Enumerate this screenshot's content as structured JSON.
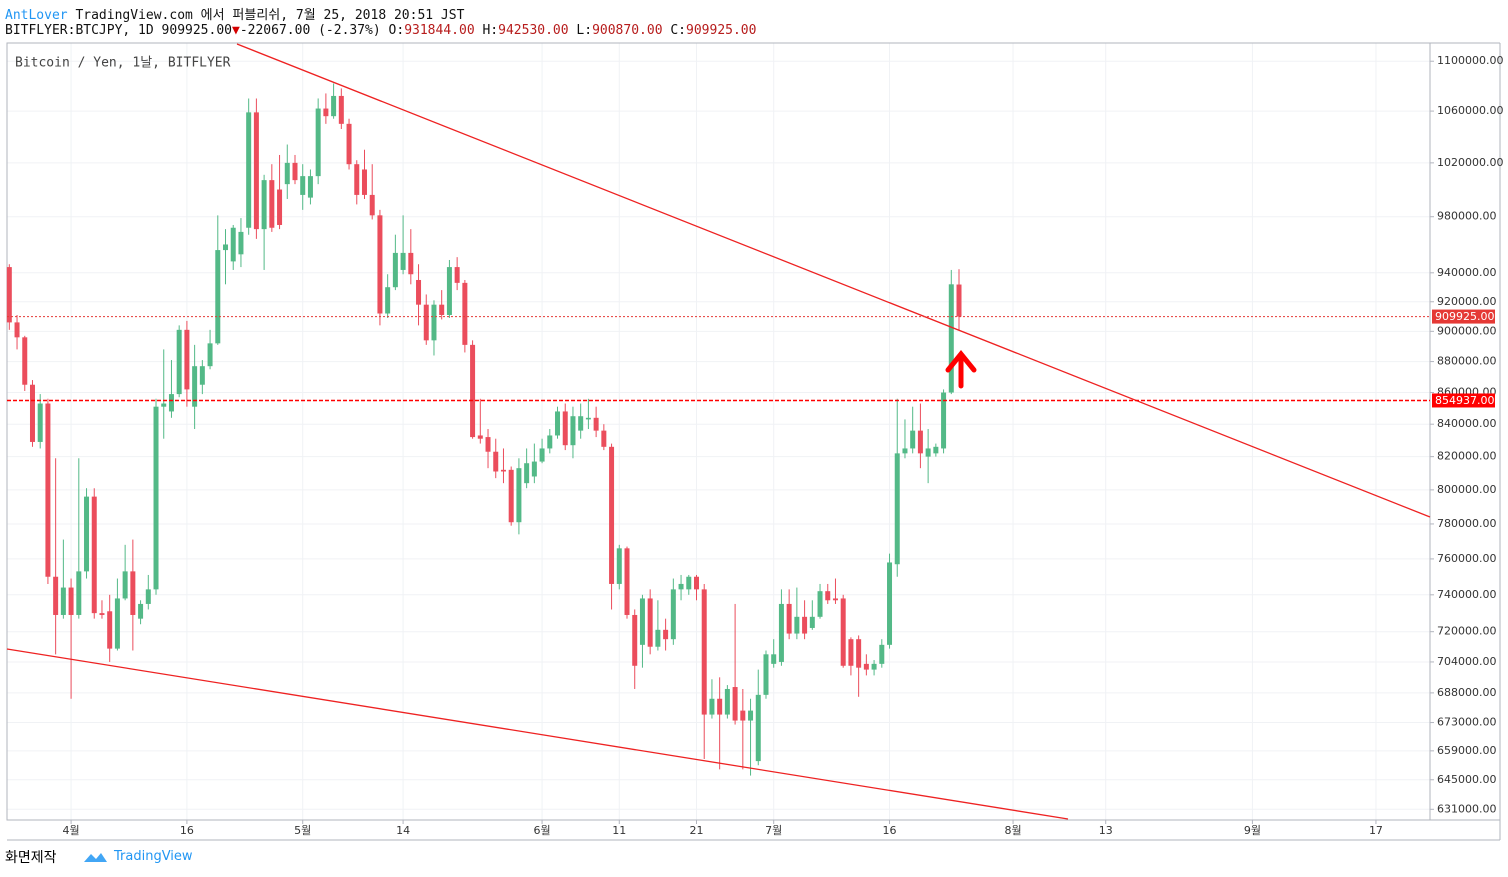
{
  "header": {
    "author": "AntLover",
    "published": "TradingView.com 에서 퍼블리쉬, 7월 25, 2018 20:51 JST",
    "symbol": "BITFLYER:BTCJPY, 1D",
    "last": "909925.00",
    "arrow": "▼",
    "change": "-22067.00 (-2.37%)",
    "ohlc": [
      {
        "label": "O:",
        "value": "931844.00"
      },
      {
        "label": "H:",
        "value": "942530.00"
      },
      {
        "label": "L:",
        "value": "900870.00"
      },
      {
        "label": "C:",
        "value": "909925.00"
      }
    ]
  },
  "chart_data": {
    "type": "candlestick",
    "title": "Bitcoin / Yen, 1날, BITFLYER",
    "up_color": "#53b987",
    "down_color": "#eb4d5c",
    "log_scale": true,
    "grid": true,
    "open": [
      944000,
      906000,
      896000,
      865000,
      829000,
      853000,
      750000,
      729000,
      744000,
      729000,
      753000,
      796000,
      730000,
      731000,
      711000,
      738000,
      753000,
      727000,
      735000,
      743000,
      851000,
      848000,
      859000,
      901000,
      851000,
      865000,
      877000,
      892000,
      956000,
      948000,
      953000,
      972000,
      1059000,
      971000,
      1007000,
      1000000,
      1004000,
      1020000,
      996000,
      994000,
      1010000,
      1062000,
      1056000,
      1072000,
      1050000,
      1019000,
      1015000,
      996000,
      981000,
      912000,
      930000,
      942000,
      954000,
      935000,
      918000,
      894000,
      918000,
      911000,
      944000,
      933000,
      891000,
      833000,
      832000,
      823000,
      812000,
      812000,
      781000,
      804000,
      808000,
      817000,
      825000,
      833000,
      848000,
      827000,
      836000,
      843000,
      844000,
      836000,
      826000,
      746000,
      766000,
      729000,
      713000,
      738000,
      712000,
      721000,
      716000,
      743000,
      743000,
      750000,
      743000,
      677000,
      685000,
      677000,
      691000,
      679000,
      674000,
      654000,
      687000,
      703000,
      704000,
      735000,
      719000,
      728000,
      722000,
      728000,
      742000,
      738000,
      738000,
      716000,
      716000,
      703000,
      700000,
      703000,
      713000,
      757000,
      822000,
      825000,
      836000,
      820000,
      822000,
      825000,
      860000,
      931844
    ],
    "high": [
      946000,
      911000,
      897000,
      868000,
      859000,
      856000,
      819000,
      771000,
      749000,
      819000,
      801000,
      801000,
      737000,
      740000,
      749000,
      768000,
      771000,
      737000,
      751000,
      856000,
      888000,
      881000,
      904000,
      907000,
      891000,
      881000,
      901000,
      981000,
      971000,
      974000,
      979000,
      1070000,
      1070000,
      1011000,
      1019000,
      1026000,
      1034000,
      1026000,
      1019000,
      1015000,
      1070000,
      1074000,
      1082000,
      1078000,
      1054000,
      1022000,
      1030000,
      1019000,
      985000,
      939000,
      967000,
      981000,
      971000,
      946000,
      925000,
      921000,
      928000,
      949000,
      951000,
      935000,
      894000,
      856000,
      837000,
      831000,
      825000,
      814000,
      819000,
      825000,
      828000,
      831000,
      837000,
      851000,
      853000,
      851000,
      853000,
      856000,
      851000,
      840000,
      828000,
      768000,
      767000,
      732000,
      740000,
      743000,
      737000,
      727000,
      749000,
      751000,
      751000,
      751000,
      746000,
      695000,
      696000,
      692000,
      735000,
      690000,
      685000,
      700000,
      710000,
      716000,
      743000,
      743000,
      744000,
      737000,
      737000,
      746000,
      746000,
      749000,
      740000,
      717000,
      718000,
      708000,
      705000,
      716000,
      763000,
      856000,
      843000,
      851000,
      853000,
      837000,
      828000,
      862000,
      942000,
      942530
    ],
    "low": [
      901000,
      888000,
      861000,
      826000,
      825000,
      746000,
      708000,
      727000,
      685000,
      727000,
      749000,
      727000,
      727000,
      704000,
      710000,
      737000,
      710000,
      724000,
      732000,
      740000,
      831000,
      844000,
      857000,
      851000,
      837000,
      859000,
      875000,
      891000,
      932000,
      942000,
      944000,
      967000,
      964000,
      942000,
      969000,
      971000,
      993000,
      1004000,
      985000,
      989000,
      1004000,
      1050000,
      1054000,
      1046000,
      1015000,
      989000,
      993000,
      978000,
      904000,
      909000,
      928000,
      939000,
      932000,
      904000,
      891000,
      884000,
      908000,
      909000,
      928000,
      886000,
      831000,
      828000,
      813000,
      807000,
      804000,
      779000,
      774000,
      801000,
      804000,
      816000,
      822000,
      831000,
      824000,
      819000,
      831000,
      837000,
      832000,
      824000,
      732000,
      743000,
      727000,
      690000,
      701000,
      708000,
      710000,
      710000,
      713000,
      737000,
      740000,
      737000,
      655000,
      675000,
      650000,
      675000,
      672000,
      650000,
      647000,
      652000,
      685000,
      701000,
      702000,
      716000,
      716000,
      716000,
      721000,
      727000,
      735000,
      735000,
      701000,
      697000,
      686000,
      697000,
      697000,
      701000,
      711000,
      750000,
      819000,
      822000,
      813000,
      804000,
      820000,
      822000,
      859000,
      900870
    ],
    "close": [
      906000,
      896000,
      865000,
      829000,
      853000,
      750000,
      729000,
      744000,
      729000,
      753000,
      796000,
      730000,
      729000,
      711000,
      738000,
      753000,
      729000,
      735000,
      743000,
      851000,
      853000,
      859000,
      901000,
      862000,
      877000,
      877000,
      892000,
      956000,
      960000,
      972000,
      969000,
      1059000,
      971000,
      1007000,
      972000,
      974000,
      1020000,
      1007000,
      1010000,
      1010000,
      1062000,
      1056000,
      1072000,
      1050000,
      1019000,
      996000,
      996000,
      981000,
      912000,
      930000,
      954000,
      954000,
      939000,
      918000,
      894000,
      918000,
      911000,
      944000,
      933000,
      891000,
      832000,
      831000,
      823000,
      811000,
      811000,
      781000,
      813000,
      816000,
      817000,
      825000,
      833000,
      848000,
      827000,
      845000,
      845000,
      844000,
      836000,
      826000,
      746000,
      766000,
      729000,
      702000,
      738000,
      712000,
      721000,
      716000,
      743000,
      746000,
      750000,
      743000,
      677000,
      685000,
      677000,
      690000,
      674000,
      674000,
      679000,
      687000,
      708000,
      708000,
      735000,
      719000,
      728000,
      719000,
      728000,
      742000,
      737000,
      737000,
      702000,
      702000,
      701000,
      700000,
      703000,
      713000,
      758000,
      822000,
      825000,
      836000,
      822000,
      825000,
      826000,
      860000,
      932000,
      909925
    ],
    "ylim": [
      626000,
      1115000
    ],
    "yticks": [
      {
        "value": 1100000,
        "label": "1100000.00"
      },
      {
        "value": 1060000,
        "label": "1060000.00"
      },
      {
        "value": 1020000,
        "label": "1020000.00"
      },
      {
        "value": 980000,
        "label": "980000.00"
      },
      {
        "value": 940000,
        "label": "940000.00"
      },
      {
        "value": 920000,
        "label": "920000.00"
      },
      {
        "value": 900000,
        "label": "900000.00"
      },
      {
        "value": 880000,
        "label": "880000.00"
      },
      {
        "value": 860000,
        "label": "860000.00"
      },
      {
        "value": 840000,
        "label": "840000.00"
      },
      {
        "value": 820000,
        "label": "820000.00"
      },
      {
        "value": 800000,
        "label": "800000.00"
      },
      {
        "value": 780000,
        "label": "780000.00"
      },
      {
        "value": 760000,
        "label": "760000.00"
      },
      {
        "value": 740000,
        "label": "740000.00"
      },
      {
        "value": 720000,
        "label": "720000.00"
      },
      {
        "value": 704000,
        "label": "704000.00"
      },
      {
        "value": 688000,
        "label": "688000.00"
      },
      {
        "value": 673000,
        "label": "673000.00"
      },
      {
        "value": 659000,
        "label": "659000.00"
      },
      {
        "value": 645000,
        "label": "645000.00"
      },
      {
        "value": 631000,
        "label": "631000.00"
      }
    ],
    "xlim": [
      -0.3,
      184
    ],
    "xticks": [
      {
        "value": 8,
        "label": "4월"
      },
      {
        "value": 23,
        "label": "16"
      },
      {
        "value": 38,
        "label": "5월"
      },
      {
        "value": 51,
        "label": "14"
      },
      {
        "value": 69,
        "label": "6월"
      },
      {
        "value": 79,
        "label": "11"
      },
      {
        "value": 89,
        "label": "21"
      },
      {
        "value": 99,
        "label": "7월"
      },
      {
        "value": 114,
        "label": "16"
      },
      {
        "value": 130,
        "label": "8월"
      },
      {
        "value": 142,
        "label": "13"
      },
      {
        "value": 161,
        "label": "9월"
      },
      {
        "value": 177,
        "label": "17"
      }
    ],
    "price_lines": [
      {
        "value": 909925,
        "label": "909925.00",
        "style": "dotted",
        "color": "#e53935"
      },
      {
        "value": 854937,
        "label": "854937.00",
        "style": "dashed",
        "color": "#ff0000"
      }
    ]
  },
  "footer": {
    "caption": "화면제작",
    "brand": "TradingView"
  }
}
